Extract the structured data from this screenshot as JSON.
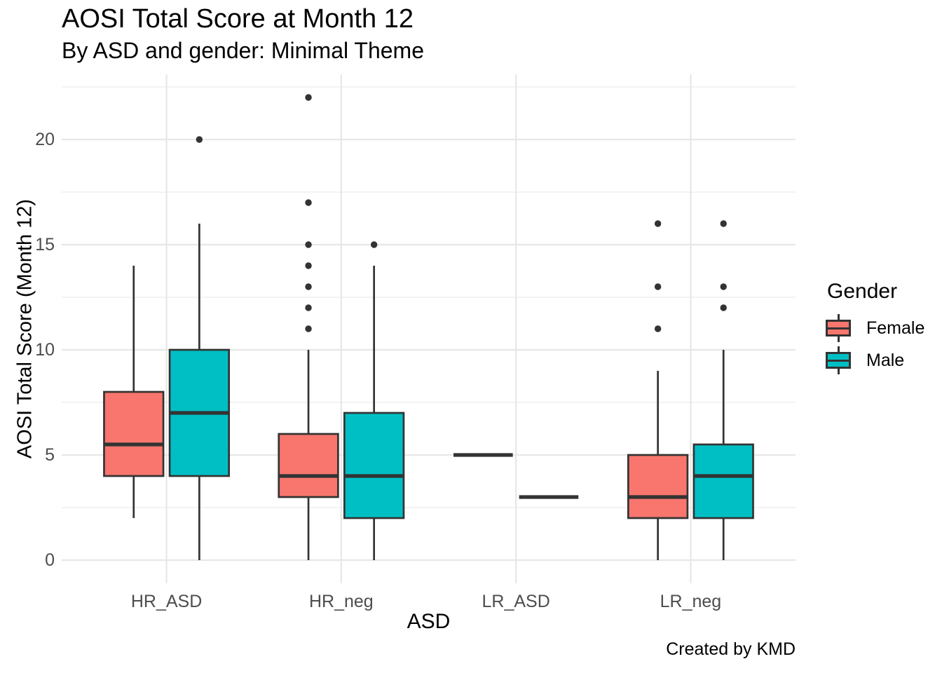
{
  "title": "AOSI Total Score at Month 12",
  "subtitle": "By ASD and gender: Minimal Theme",
  "caption": "Created by KMD",
  "axes": {
    "x_title": "ASD",
    "y_title": "AOSI Total Score (Month 12)",
    "x_categories": [
      "HR_ASD",
      "HR_neg",
      "LR_ASD",
      "LR_neg"
    ],
    "y_ticks": [
      0,
      5,
      10,
      15,
      20
    ]
  },
  "legend": {
    "title": "Gender",
    "entries": [
      {
        "label": "Female",
        "color": "#F8766D"
      },
      {
        "label": "Male",
        "color": "#00BFC4"
      }
    ]
  },
  "colors": {
    "female": "#F8766D",
    "male": "#00BFC4",
    "box_outline": "#333333",
    "outlier": "#333333",
    "grid_major": "#E7E7E7",
    "grid_minor": "#EFEFEF",
    "axis_text": "#4D4D4D",
    "text": "#000000",
    "background": "#FFFFFF"
  },
  "chart_data": {
    "type": "boxplot",
    "title": "AOSI Total Score at Month 12",
    "subtitle": "By ASD and gender: Minimal Theme",
    "caption": "Created by KMD",
    "xlabel": "ASD",
    "ylabel": "AOSI Total Score (Month 12)",
    "categories": [
      "HR_ASD",
      "HR_neg",
      "LR_ASD",
      "LR_neg"
    ],
    "ylim": [
      -1.1,
      23.1
    ],
    "y_major_gridlines": [
      0,
      5,
      10,
      15,
      20
    ],
    "y_minor_gridlines": [
      2.5,
      7.5,
      12.5,
      17.5,
      22.5
    ],
    "grid": true,
    "legend_position": "right",
    "series": [
      {
        "name": "Female",
        "color": "#F8766D",
        "boxes": [
          {
            "category": "HR_ASD",
            "whisker_low": 2,
            "q1": 4,
            "median": 5.5,
            "q3": 8,
            "whisker_high": 14,
            "outliers": []
          },
          {
            "category": "HR_neg",
            "whisker_low": 0,
            "q1": 3,
            "median": 4,
            "q3": 6,
            "whisker_high": 10,
            "outliers": [
              11,
              12,
              13,
              14,
              15,
              17,
              22
            ]
          },
          {
            "category": "LR_ASD",
            "whisker_low": 5,
            "q1": 5,
            "median": 5,
            "q3": 5,
            "whisker_high": 5,
            "outliers": []
          },
          {
            "category": "LR_neg",
            "whisker_low": 0,
            "q1": 2,
            "median": 3,
            "q3": 5,
            "whisker_high": 9,
            "outliers": [
              11,
              13,
              16
            ]
          }
        ]
      },
      {
        "name": "Male",
        "color": "#00BFC4",
        "boxes": [
          {
            "category": "HR_ASD",
            "whisker_low": 0,
            "q1": 4,
            "median": 7,
            "q3": 10,
            "whisker_high": 16,
            "outliers": [
              20
            ]
          },
          {
            "category": "HR_neg",
            "whisker_low": 0,
            "q1": 2,
            "median": 4,
            "q3": 7,
            "whisker_high": 14,
            "outliers": [
              15
            ]
          },
          {
            "category": "LR_ASD",
            "whisker_low": 3,
            "q1": 3,
            "median": 3,
            "q3": 3,
            "whisker_high": 3,
            "outliers": []
          },
          {
            "category": "LR_neg",
            "whisker_low": 0,
            "q1": 2,
            "median": 4,
            "q3": 5.5,
            "whisker_high": 10,
            "outliers": [
              12,
              13,
              16
            ]
          }
        ]
      }
    ]
  }
}
